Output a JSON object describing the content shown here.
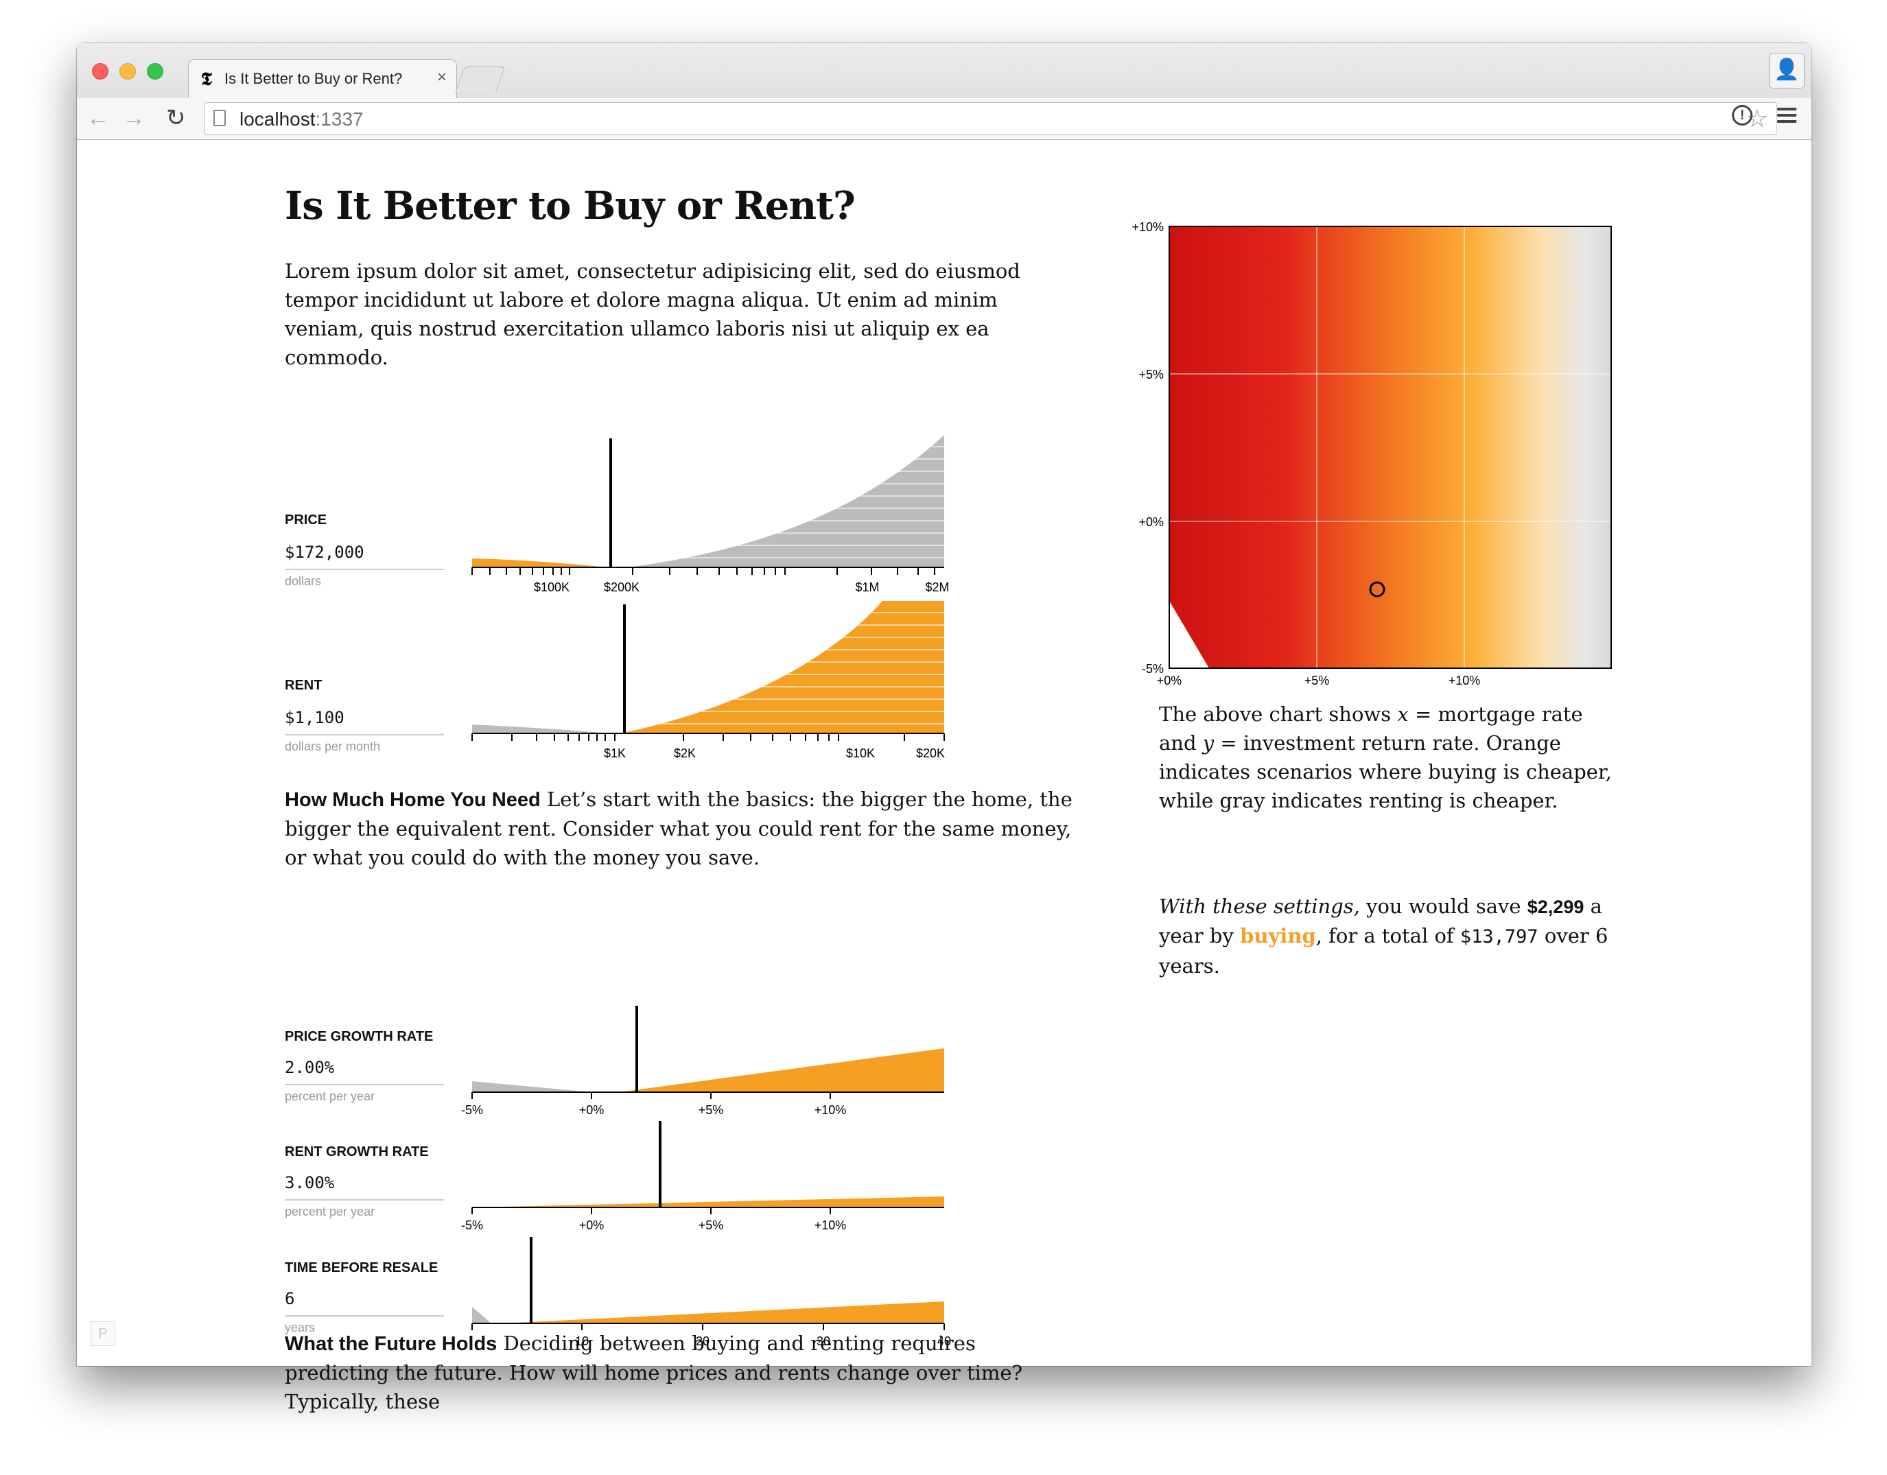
{
  "browser": {
    "tab_title": "Is It Better to Buy or Rent?",
    "tab_close": "×",
    "url_host": "localhost",
    "url_port": ":1337"
  },
  "article": {
    "title": "Is It Better to Buy or Rent?",
    "intro": "Lorem ipsum dolor sit amet, consectetur adipisicing elit, sed do eiusmod tempor incididunt ut labore et dolore magna aliqua. Ut enim ad minim veniam, quis nostrud exercitation ullamco laboris nisi ut aliquip ex ea commodo.",
    "section1_title": "How Much Home You Need",
    "section1_body": " Let’s start with the basics: the bigger the home, the bigger the equivalent rent. Consider what you could rent for the same money, or what you could do with the money you save.",
    "section2_title": "What the Future Holds",
    "section2_body": " Deciding between buying and renting requires predicting the future. How will home prices and rents change over time? Typically, these"
  },
  "controls": {
    "price": {
      "label": "PRICE",
      "value": "$172,000",
      "unit": "dollars",
      "ticks": [
        "$100K",
        "$200K",
        "$1M",
        "$2M"
      ]
    },
    "rent": {
      "label": "RENT",
      "value": "$1,100",
      "unit": "dollars per month",
      "ticks": [
        "$1K",
        "$2K",
        "$10K",
        "$20K"
      ]
    },
    "price_growth": {
      "label": "PRICE GROWTH RATE",
      "value": "2.00%",
      "unit": "percent per year",
      "ticks": [
        "-5%",
        "+0%",
        "+5%",
        "+10%"
      ]
    },
    "rent_growth": {
      "label": "RENT GROWTH RATE",
      "value": "3.00%",
      "unit": "percent per year",
      "ticks": [
        "-5%",
        "+0%",
        "+5%",
        "+10%"
      ]
    },
    "resale": {
      "label": "TIME BEFORE RESALE",
      "value": "6",
      "unit": "years",
      "ticks": [
        "10",
        "20",
        "30",
        "40"
      ]
    }
  },
  "heatmap": {
    "y_ticks": [
      "+10%",
      "+5%",
      "+0%",
      "-5%"
    ],
    "x_ticks": [
      "+0%",
      "+5%",
      "+10%"
    ],
    "caption_1": "The above chart shows ",
    "caption_x": "x",
    "caption_2": " = mortgage rate and ",
    "caption_y": "y",
    "caption_3": " = investment return rate. Orange indicates scenarios where buying is cheaper, while gray indicates renting is cheaper.",
    "colors": {
      "buy": "#f5a022",
      "rent": "#bbbbbb"
    }
  },
  "result": {
    "lead": "With these settings,",
    "text1": " you would save ",
    "yearly": "$2,299",
    "text2": " a year by ",
    "choice": "buying",
    "text3": ", for a total of ",
    "total": "$13,797",
    "text4": " over 6 years."
  },
  "badge": "P"
}
